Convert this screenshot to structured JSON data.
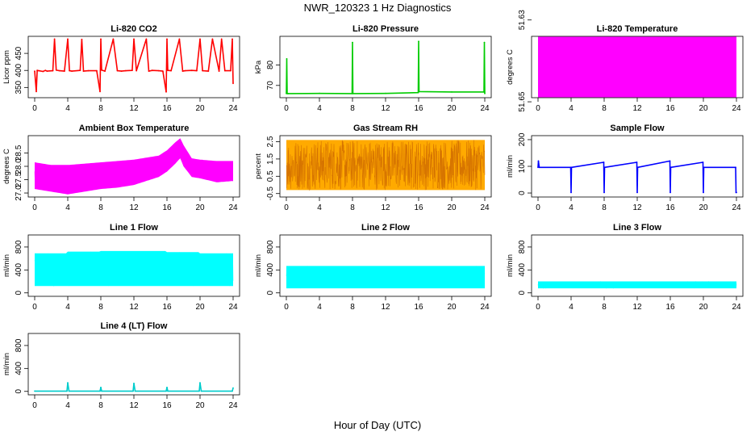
{
  "figure": {
    "title": "NWR_120323  1 Hz Diagnostics",
    "xlabel": "Hour of Day (UTC)"
  },
  "chart_data": [
    {
      "type": "line",
      "title": "Li-820 CO2",
      "ylabel": "Licor ppm",
      "color": "#ff0000",
      "xlim": [
        0,
        24
      ],
      "ylim": [
        320,
        500
      ],
      "yticks": [
        "350",
        "400",
        "450"
      ],
      "ytick_values": [
        350,
        400,
        450
      ],
      "xticks": [
        "0",
        "4",
        "8",
        "12",
        "16",
        "20",
        "24"
      ],
      "series": [
        {
          "x": [
            0,
            0.2,
            0.3,
            0.5,
            1.0,
            1.3,
            1.5,
            2.2,
            2.4,
            2.6,
            3.0,
            3.6,
            4.0,
            4.2,
            4.5,
            5.5,
            5.7,
            5.9,
            6.5,
            7.5,
            7.9,
            8.0,
            8.1,
            8.5,
            9.5,
            10.0,
            10.5,
            11.0,
            11.8,
            12.0,
            12.3,
            13.5,
            13.8,
            14.2,
            15.0,
            15.5,
            15.9,
            16.0,
            16.1,
            16.5,
            17.5,
            17.9,
            18.2,
            19.0,
            19.6,
            20.0,
            20.3,
            21.0,
            21.5,
            22.3,
            22.6,
            23.0,
            23.7,
            23.9,
            24.0
          ],
          "y": [
            398,
            338,
            400,
            399,
            397,
            400,
            398,
            399,
            492,
            401,
            399,
            398,
            492,
            399,
            398,
            400,
            491,
            398,
            399,
            399,
            338,
            492,
            401,
            398,
            492,
            399,
            398,
            399,
            400,
            492,
            399,
            492,
            398,
            400,
            399,
            398,
            337,
            492,
            400,
            399,
            492,
            398,
            399,
            400,
            399,
            492,
            399,
            398,
            492,
            398,
            492,
            399,
            399,
            492,
            362
          ]
        }
      ]
    },
    {
      "type": "line",
      "title": "Li-820 Pressure",
      "ylabel": "kPa",
      "color": "#00cc00",
      "xlim": [
        0,
        24
      ],
      "ylim": [
        64,
        94
      ],
      "yticks": [
        "70",
        "80"
      ],
      "ytick_values": [
        70,
        80
      ],
      "xticks": [
        "0",
        "4",
        "8",
        "12",
        "16",
        "20",
        "24"
      ],
      "series": [
        {
          "x": [
            0,
            0.05,
            0.1,
            0.2,
            4.0,
            7.95,
            8.0,
            8.05,
            12.0,
            15.95,
            16.0,
            16.05,
            20.0,
            23.9,
            23.95,
            24.0
          ],
          "y": [
            66,
            83,
            66,
            66,
            66.1,
            66,
            91,
            66,
            66.1,
            66.5,
            91.5,
            67,
            66.8,
            66.8,
            91,
            66
          ]
        }
      ]
    },
    {
      "type": "area",
      "title": "Li-820 Temperature",
      "ylabel": "degrees C",
      "color": "#ff00ff",
      "xlim": [
        0,
        24
      ],
      "ylim": [
        51.649,
        51.634
      ],
      "yticks": [
        "51.65",
        "51.63"
      ],
      "ytick_values": [
        51.65,
        51.63
      ],
      "xticks": [
        "0",
        "4",
        "8",
        "12",
        "16",
        "20",
        "24"
      ],
      "series": [
        {
          "x": [
            0,
            24
          ],
          "y": [
            51.6492,
            51.6492
          ]
        },
        {
          "x": [
            0,
            24
          ],
          "y": [
            51.6336,
            51.6336
          ]
        }
      ]
    },
    {
      "type": "area",
      "title": "Ambient Box Temperature",
      "ylabel": "degrees C",
      "color": "#ff00ff",
      "xlim": [
        0,
        24
      ],
      "ylim": [
        26.85,
        29.15
      ],
      "yticks": [
        "27.0",
        "27.5",
        "28.0",
        "28.5"
      ],
      "ytick_values": [
        27.0,
        27.5,
        28.0,
        28.5
      ],
      "xticks": [
        "0",
        "4",
        "8",
        "12",
        "16",
        "20",
        "24"
      ],
      "series": [
        {
          "x": [
            0,
            2,
            4,
            6,
            8,
            10,
            12,
            14,
            15,
            16,
            17,
            17.6,
            18,
            19,
            20,
            22,
            24
          ],
          "y": [
            28.15,
            28.05,
            28.05,
            28.1,
            28.15,
            28.2,
            28.25,
            28.35,
            28.4,
            28.6,
            28.9,
            29.05,
            28.8,
            28.3,
            28.25,
            28.2,
            28.2
          ]
        },
        {
          "x": [
            0,
            2,
            4,
            6,
            8,
            10,
            12,
            14,
            15,
            16,
            17,
            17.6,
            18,
            19,
            20,
            22,
            24
          ],
          "y": [
            27.15,
            27.05,
            26.95,
            27.05,
            27.15,
            27.2,
            27.3,
            27.5,
            27.6,
            27.8,
            28.1,
            28.3,
            28.0,
            27.6,
            27.55,
            27.4,
            27.45
          ]
        }
      ]
    },
    {
      "type": "area",
      "title": "Gas Stream RH",
      "ylabel": "percent",
      "color": "#ffaa00",
      "xlim": [
        0,
        24
      ],
      "ylim": [
        -0.7,
        2.85
      ],
      "yticks": [
        "-0.5",
        "0.5",
        "1.5",
        "2.5"
      ],
      "ytick_values": [
        -0.5,
        0.5,
        1.5,
        2.5
      ],
      "xticks": [
        "0",
        "4",
        "8",
        "12",
        "16",
        "20",
        "24"
      ],
      "series": [
        {
          "x": [
            0,
            24
          ],
          "y": [
            2.6,
            2.6
          ]
        },
        {
          "x": [
            0,
            24
          ],
          "y": [
            -0.3,
            -0.3
          ]
        }
      ]
    },
    {
      "type": "line",
      "title": "Sample Flow",
      "ylabel": "ml/min",
      "color": "#0000ff",
      "xlim": [
        0,
        24
      ],
      "ylim": [
        -15,
        215
      ],
      "yticks": [
        "0",
        "100",
        "200"
      ],
      "ytick_values": [
        0,
        100,
        200
      ],
      "xticks": [
        "0",
        "4",
        "8",
        "12",
        "16",
        "20",
        "24"
      ],
      "series": [
        {
          "x": [
            0,
            0.05,
            0.15,
            3.95,
            4.0,
            4.05,
            7.95,
            8.0,
            8.05,
            11.95,
            12.0,
            12.05,
            15.95,
            16.0,
            16.05,
            19.95,
            20.0,
            20.05,
            23.9,
            23.95,
            24.0
          ],
          "y": [
            96,
            120,
            96,
            96,
            2,
            96,
            115,
            2,
            96,
            115,
            2,
            96,
            120,
            2,
            96,
            115,
            2,
            96,
            96,
            2,
            2
          ]
        }
      ]
    },
    {
      "type": "area",
      "title": "Line 1 Flow",
      "ylabel": "ml/min",
      "color": "#00ffff",
      "xlim": [
        0,
        24
      ],
      "ylim": [
        -60,
        1010
      ],
      "yticks": [
        "0",
        "400",
        "800"
      ],
      "ytick_values": [
        0,
        400,
        800
      ],
      "xticks": [
        "0",
        "4",
        "8",
        "12",
        "16",
        "20",
        "24"
      ],
      "series": [
        {
          "x": [
            0,
            3.9,
            4.0,
            7.9,
            8.0,
            11.9,
            12.0,
            15.9,
            16.0,
            19.9,
            20.0,
            24.0
          ],
          "y": [
            690,
            690,
            720,
            720,
            730,
            730,
            730,
            730,
            710,
            710,
            690,
            690
          ]
        },
        {
          "x": [
            0,
            24
          ],
          "y": [
            120,
            120
          ]
        }
      ]
    },
    {
      "type": "area",
      "title": "Line 2 Flow",
      "ylabel": "ml/min",
      "color": "#00ffff",
      "xlim": [
        0,
        24
      ],
      "ylim": [
        -60,
        1010
      ],
      "yticks": [
        "0",
        "400",
        "800"
      ],
      "ytick_values": [
        0,
        400,
        800
      ],
      "xticks": [
        "0",
        "4",
        "8",
        "12",
        "16",
        "20",
        "24"
      ],
      "series": [
        {
          "x": [
            0,
            24
          ],
          "y": [
            470,
            470
          ]
        },
        {
          "x": [
            0,
            24
          ],
          "y": [
            80,
            80
          ]
        }
      ]
    },
    {
      "type": "area",
      "title": "Line 3 Flow",
      "ylabel": "ml/min",
      "color": "#00ffff",
      "xlim": [
        0,
        24
      ],
      "ylim": [
        -60,
        1010
      ],
      "yticks": [
        "0",
        "400",
        "800"
      ],
      "ytick_values": [
        0,
        400,
        800
      ],
      "xticks": [
        "0",
        "4",
        "8",
        "12",
        "16",
        "20",
        "24"
      ],
      "series": [
        {
          "x": [
            0,
            24
          ],
          "y": [
            200,
            200
          ]
        },
        {
          "x": [
            0,
            24
          ],
          "y": [
            80,
            80
          ]
        }
      ]
    },
    {
      "type": "line",
      "title": "Line 4 (LT) Flow",
      "ylabel": "ml/min",
      "color": "#00cccc",
      "xlim": [
        0,
        24
      ],
      "ylim": [
        -60,
        1010
      ],
      "yticks": [
        "0",
        "400",
        "800"
      ],
      "ytick_values": [
        0,
        400,
        800
      ],
      "xticks": [
        "0",
        "4",
        "8",
        "12",
        "16",
        "20",
        "24"
      ],
      "series": [
        {
          "x": [
            0,
            3.9,
            4.0,
            4.15,
            7.9,
            8.0,
            8.1,
            11.9,
            12.0,
            12.15,
            15.9,
            16.0,
            16.1,
            19.9,
            20.0,
            20.15,
            23.9,
            24.0
          ],
          "y": [
            5,
            5,
            150,
            5,
            5,
            70,
            5,
            5,
            140,
            5,
            5,
            70,
            5,
            5,
            150,
            5,
            5,
            60
          ]
        }
      ]
    }
  ]
}
